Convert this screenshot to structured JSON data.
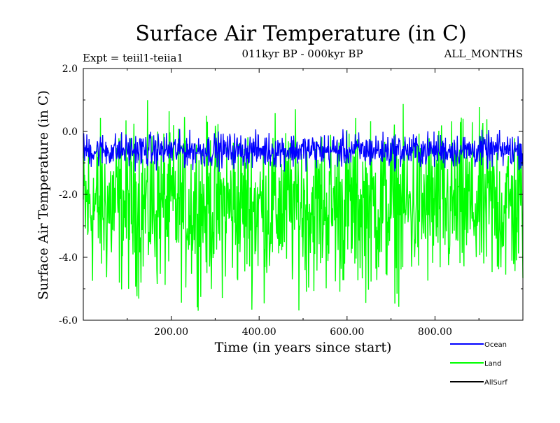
{
  "chart_data": {
    "type": "line",
    "title": "Surface Air Temperature (in C)",
    "subtitle_left": "Expt = teiil1-teiia1",
    "subtitle_center": "011kyr BP - 000kyr BP",
    "subtitle_right": "ALL_MONTHS",
    "xlabel": "Time (in years since start)",
    "ylabel": "Surface Air Temperature (in C)",
    "xlim": [
      0,
      1000
    ],
    "ylim": [
      -6.0,
      2.0
    ],
    "x_ticks": [
      200,
      400,
      600,
      800
    ],
    "x_tick_labels": [
      "200.00",
      "400.00",
      "600.00",
      "800.00"
    ],
    "y_ticks": [
      2.0,
      0.0,
      -2.0,
      -4.0,
      -6.0
    ],
    "y_tick_labels": [
      "2.0",
      "0.0",
      "-2.0",
      "-4.0",
      "-6.0"
    ],
    "grid": false,
    "legend_position": "bottom-right",
    "series": [
      {
        "name": "Land",
        "color": "#00ff00",
        "mean": -2.4,
        "range": [
          -5.7,
          1.3
        ],
        "samples": 1000
      },
      {
        "name": "Ocean",
        "color": "#0000ff",
        "mean": -0.6,
        "range": [
          -1.3,
          0.3
        ],
        "samples": 1000
      },
      {
        "name": "AllSurf",
        "color": "#000000",
        "mean": null,
        "range": null,
        "samples": 0
      }
    ],
    "legend_order": [
      "Ocean",
      "Land",
      "AllSurf"
    ]
  }
}
